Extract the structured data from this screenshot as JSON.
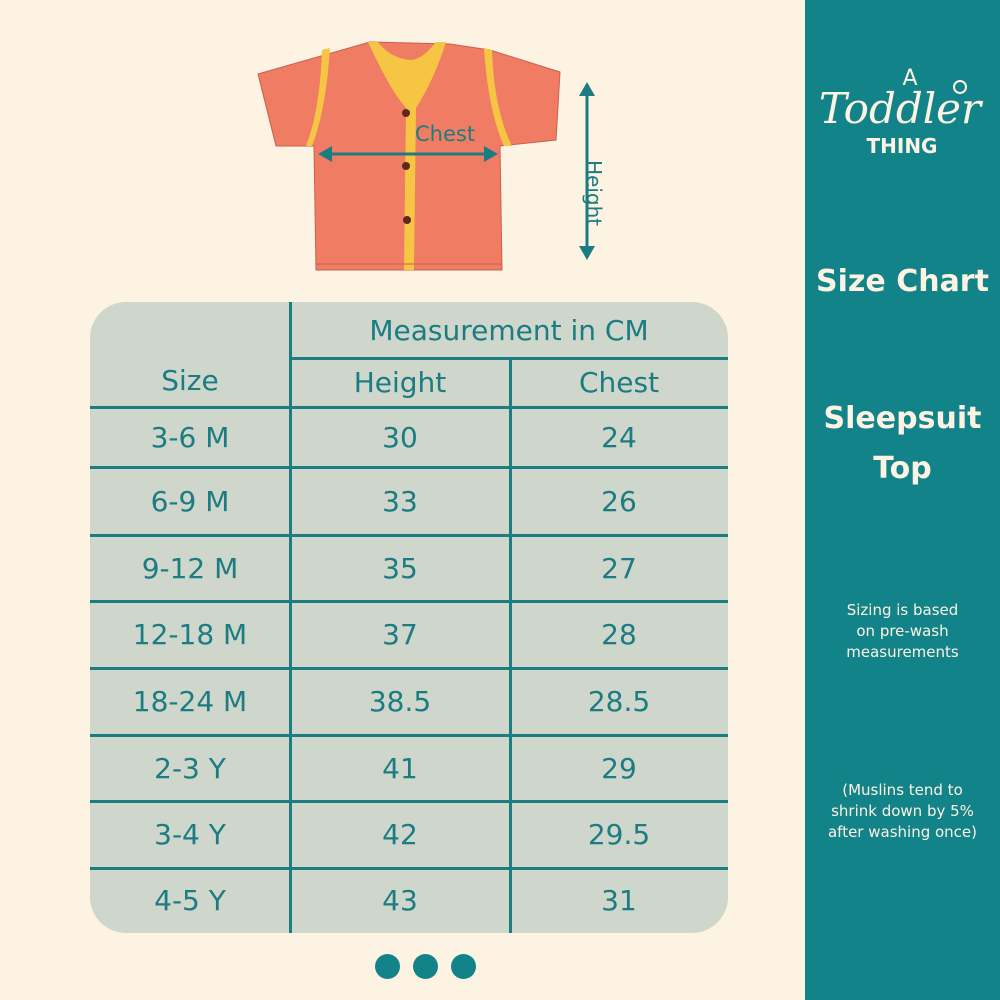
{
  "brand": {
    "logo_text": "A Toddler THING"
  },
  "panel": {
    "title": "Size Chart",
    "product_line1": "Sleepsuit",
    "product_line2": "Top",
    "note1": [
      "Sizing is based",
      "on pre-wash",
      "measurements"
    ],
    "note2": [
      "(Muslins tend to",
      "shrink down by 5%",
      "after washing once)"
    ]
  },
  "diagram": {
    "chest_label": "Chest",
    "height_label": "Height"
  },
  "table": {
    "size_header": "Size",
    "group_header": "Measurement in CM",
    "columns": [
      "Height",
      "Chest"
    ],
    "rows": [
      [
        "3-6 M",
        "30",
        "24"
      ],
      [
        "6-9 M",
        "33",
        "26"
      ],
      [
        "9-12 M",
        "35",
        "27"
      ],
      [
        "12-18 M",
        "37",
        "28"
      ],
      [
        "18-24 M",
        "38.5",
        "28.5"
      ],
      [
        "2-3 Y",
        "41",
        "29"
      ],
      [
        "3-4 Y",
        "42",
        "29.5"
      ],
      [
        "4-5 Y",
        "43",
        "31"
      ]
    ]
  },
  "carousel": {
    "dots": 3
  },
  "colors": {
    "teal": "#13838a",
    "background": "#fdf3e3",
    "table_bg": "#cfd6cb",
    "shirt": "#f07c64",
    "trim": "#f6c544"
  }
}
